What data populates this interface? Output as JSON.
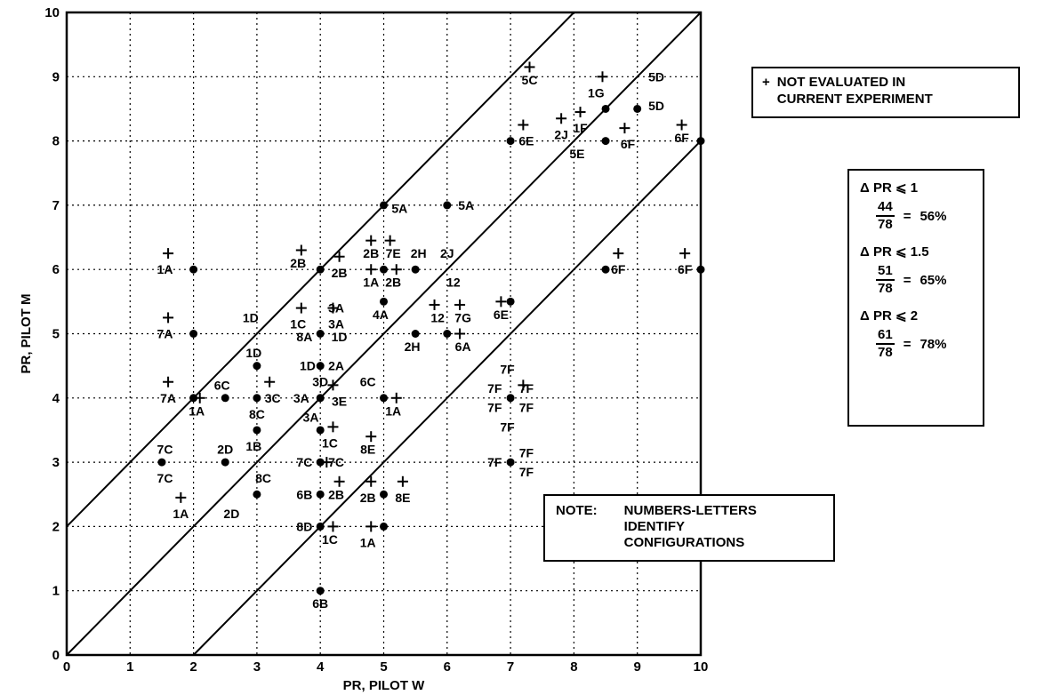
{
  "chart_data": {
    "type": "scatter",
    "title": "",
    "xlabel": "PR, PILOT W",
    "ylabel": "PR, PILOT M",
    "xlim": [
      0,
      10
    ],
    "ylim": [
      0,
      10
    ],
    "x_ticks": [
      "0",
      "1",
      "2",
      "3",
      "4",
      "5",
      "6",
      "7",
      "8",
      "9",
      "10"
    ],
    "y_ticks": [
      "0",
      "1",
      "2",
      "3",
      "4",
      "5",
      "6",
      "7",
      "8",
      "9",
      "10"
    ],
    "grid": true,
    "reference_lines": [
      {
        "x": [
          0,
          8
        ],
        "y": [
          2,
          10
        ]
      },
      {
        "x": [
          0,
          10
        ],
        "y": [
          0,
          10
        ]
      },
      {
        "x": [
          2,
          10
        ],
        "y": [
          0,
          8
        ]
      }
    ],
    "evaluated_points": [
      {
        "x": 2.0,
        "y": 6.0
      },
      {
        "x": 1.5,
        "y": 3.0
      },
      {
        "x": 2.0,
        "y": 5.0
      },
      {
        "x": 2.0,
        "y": 4.0
      },
      {
        "x": 2.5,
        "y": 4.0
      },
      {
        "x": 3.0,
        "y": 4.5
      },
      {
        "x": 3.0,
        "y": 4.0
      },
      {
        "x": 3.0,
        "y": 3.5
      },
      {
        "x": 3.0,
        "y": 2.5
      },
      {
        "x": 2.5,
        "y": 3.0
      },
      {
        "x": 4.0,
        "y": 6.0
      },
      {
        "x": 4.0,
        "y": 5.0
      },
      {
        "x": 4.0,
        "y": 4.5
      },
      {
        "x": 4.0,
        "y": 4.0
      },
      {
        "x": 4.0,
        "y": 3.5
      },
      {
        "x": 4.0,
        "y": 3.0
      },
      {
        "x": 4.0,
        "y": 2.5
      },
      {
        "x": 4.0,
        "y": 2.0
      },
      {
        "x": 4.0,
        "y": 1.0
      },
      {
        "x": 5.0,
        "y": 7.0
      },
      {
        "x": 6.0,
        "y": 7.0
      },
      {
        "x": 5.0,
        "y": 6.0
      },
      {
        "x": 5.5,
        "y": 6.0
      },
      {
        "x": 5.0,
        "y": 5.5
      },
      {
        "x": 5.5,
        "y": 5.0
      },
      {
        "x": 6.0,
        "y": 5.0
      },
      {
        "x": 5.0,
        "y": 4.0
      },
      {
        "x": 5.0,
        "y": 2.5
      },
      {
        "x": 5.0,
        "y": 2.0
      },
      {
        "x": 7.0,
        "y": 5.5
      },
      {
        "x": 7.0,
        "y": 8.0
      },
      {
        "x": 8.5,
        "y": 8.0
      },
      {
        "x": 8.5,
        "y": 8.5
      },
      {
        "x": 9.0,
        "y": 8.5
      },
      {
        "x": 8.5,
        "y": 6.0
      },
      {
        "x": 10.0,
        "y": 6.0
      },
      {
        "x": 10.0,
        "y": 8.0
      },
      {
        "x": 7.0,
        "y": 4.0
      },
      {
        "x": 7.0,
        "y": 3.0
      }
    ],
    "not_evaluated_points": [
      {
        "x": 1.6,
        "y": 6.25
      },
      {
        "x": 1.6,
        "y": 5.25
      },
      {
        "x": 1.6,
        "y": 4.25
      },
      {
        "x": 2.1,
        "y": 4.0
      },
      {
        "x": 1.8,
        "y": 2.45
      },
      {
        "x": 3.2,
        "y": 4.25
      },
      {
        "x": 3.7,
        "y": 6.3
      },
      {
        "x": 4.3,
        "y": 6.2
      },
      {
        "x": 3.7,
        "y": 5.4
      },
      {
        "x": 4.2,
        "y": 5.4
      },
      {
        "x": 4.2,
        "y": 4.2
      },
      {
        "x": 4.2,
        "y": 3.55
      },
      {
        "x": 4.1,
        "y": 3.0
      },
      {
        "x": 4.3,
        "y": 2.7
      },
      {
        "x": 4.2,
        "y": 2.0
      },
      {
        "x": 4.8,
        "y": 6.45
      },
      {
        "x": 5.1,
        "y": 6.45
      },
      {
        "x": 4.8,
        "y": 6.0
      },
      {
        "x": 5.2,
        "y": 6.0
      },
      {
        "x": 5.8,
        "y": 5.45
      },
      {
        "x": 6.2,
        "y": 5.45
      },
      {
        "x": 6.2,
        "y": 5.0
      },
      {
        "x": 6.85,
        "y": 5.5
      },
      {
        "x": 4.8,
        "y": 3.4
      },
      {
        "x": 4.8,
        "y": 2.7
      },
      {
        "x": 5.3,
        "y": 2.7
      },
      {
        "x": 4.8,
        "y": 2.0
      },
      {
        "x": 5.2,
        "y": 4.0
      },
      {
        "x": 7.3,
        "y": 9.15
      },
      {
        "x": 7.2,
        "y": 8.25
      },
      {
        "x": 7.8,
        "y": 8.35
      },
      {
        "x": 8.1,
        "y": 8.45
      },
      {
        "x": 8.45,
        "y": 9.0
      },
      {
        "x": 8.8,
        "y": 8.2
      },
      {
        "x": 9.7,
        "y": 8.25
      },
      {
        "x": 8.7,
        "y": 6.25
      },
      {
        "x": 9.75,
        "y": 6.25
      },
      {
        "x": 7.2,
        "y": 4.2
      }
    ],
    "point_labels": [
      {
        "text": "1A",
        "x": 1.55,
        "y": 6.0
      },
      {
        "text": "7A",
        "x": 1.55,
        "y": 5.0
      },
      {
        "text": "7A",
        "x": 1.6,
        "y": 4.0
      },
      {
        "text": "1A",
        "x": 2.05,
        "y": 3.8
      },
      {
        "text": "6C",
        "x": 2.45,
        "y": 4.2
      },
      {
        "text": "7C",
        "x": 1.55,
        "y": 3.2
      },
      {
        "text": "7C",
        "x": 1.55,
        "y": 2.75
      },
      {
        "text": "1A",
        "x": 1.8,
        "y": 2.2
      },
      {
        "text": "2D",
        "x": 2.5,
        "y": 3.2
      },
      {
        "text": "2D",
        "x": 2.6,
        "y": 2.2
      },
      {
        "text": "1D",
        "x": 2.9,
        "y": 5.25
      },
      {
        "text": "1D",
        "x": 2.95,
        "y": 4.7
      },
      {
        "text": "3C",
        "x": 3.25,
        "y": 4.0
      },
      {
        "text": "8C",
        "x": 3.0,
        "y": 3.75
      },
      {
        "text": "1B",
        "x": 2.95,
        "y": 3.25
      },
      {
        "text": "8C",
        "x": 3.1,
        "y": 2.75
      },
      {
        "text": "2B",
        "x": 3.65,
        "y": 6.1
      },
      {
        "text": "2B",
        "x": 4.3,
        "y": 5.95
      },
      {
        "text": "1C",
        "x": 3.65,
        "y": 5.15
      },
      {
        "text": "3A",
        "x": 4.25,
        "y": 5.4
      },
      {
        "text": "3A",
        "x": 4.25,
        "y": 5.15
      },
      {
        "text": "8A",
        "x": 3.75,
        "y": 4.95
      },
      {
        "text": "1D",
        "x": 4.3,
        "y": 4.95
      },
      {
        "text": "1D",
        "x": 3.8,
        "y": 4.5
      },
      {
        "text": "2A",
        "x": 4.25,
        "y": 4.5
      },
      {
        "text": "3D",
        "x": 4.0,
        "y": 4.25
      },
      {
        "text": "3A",
        "x": 3.7,
        "y": 4.0
      },
      {
        "text": "3E",
        "x": 4.3,
        "y": 3.95
      },
      {
        "text": "3A",
        "x": 3.85,
        "y": 3.7
      },
      {
        "text": "1C",
        "x": 4.15,
        "y": 3.3
      },
      {
        "text": "7C",
        "x": 3.75,
        "y": 3.0
      },
      {
        "text": "7C",
        "x": 4.25,
        "y": 3.0
      },
      {
        "text": "6B",
        "x": 3.75,
        "y": 2.5
      },
      {
        "text": "2B",
        "x": 4.25,
        "y": 2.5
      },
      {
        "text": "8D",
        "x": 3.75,
        "y": 2.0
      },
      {
        "text": "1C",
        "x": 4.15,
        "y": 1.8
      },
      {
        "text": "6B",
        "x": 4.0,
        "y": 0.8
      },
      {
        "text": "5A",
        "x": 5.25,
        "y": 6.95
      },
      {
        "text": "5A",
        "x": 6.3,
        "y": 7.0
      },
      {
        "text": "2B",
        "x": 4.8,
        "y": 6.25
      },
      {
        "text": "7E",
        "x": 5.15,
        "y": 6.25
      },
      {
        "text": "2H",
        "x": 5.55,
        "y": 6.25
      },
      {
        "text": "2J",
        "x": 6.0,
        "y": 6.25
      },
      {
        "text": "1A",
        "x": 4.8,
        "y": 5.8
      },
      {
        "text": "2B",
        "x": 5.15,
        "y": 5.8
      },
      {
        "text": "12",
        "x": 6.1,
        "y": 5.8
      },
      {
        "text": "4A",
        "x": 4.95,
        "y": 5.3
      },
      {
        "text": "12",
        "x": 5.85,
        "y": 5.25
      },
      {
        "text": "7G",
        "x": 6.25,
        "y": 5.25
      },
      {
        "text": "2H",
        "x": 5.45,
        "y": 4.8
      },
      {
        "text": "6A",
        "x": 6.25,
        "y": 4.8
      },
      {
        "text": "6E",
        "x": 6.85,
        "y": 5.3
      },
      {
        "text": "6C",
        "x": 4.75,
        "y": 4.25
      },
      {
        "text": "1A",
        "x": 5.15,
        "y": 3.8
      },
      {
        "text": "8E",
        "x": 4.75,
        "y": 3.2
      },
      {
        "text": "2B",
        "x": 4.75,
        "y": 2.45
      },
      {
        "text": "8E",
        "x": 5.3,
        "y": 2.45
      },
      {
        "text": "1A",
        "x": 4.75,
        "y": 1.75
      },
      {
        "text": "5C",
        "x": 7.3,
        "y": 8.95
      },
      {
        "text": "1G",
        "x": 8.35,
        "y": 8.75
      },
      {
        "text": "5D",
        "x": 9.3,
        "y": 9.0
      },
      {
        "text": "5D",
        "x": 9.3,
        "y": 8.55
      },
      {
        "text": "1F",
        "x": 8.1,
        "y": 8.2
      },
      {
        "text": "2J",
        "x": 7.8,
        "y": 8.1
      },
      {
        "text": "6E",
        "x": 7.25,
        "y": 8.0
      },
      {
        "text": "5E",
        "x": 8.05,
        "y": 7.8
      },
      {
        "text": "6F",
        "x": 8.85,
        "y": 7.95
      },
      {
        "text": "6F",
        "x": 9.7,
        "y": 8.05
      },
      {
        "text": "6F",
        "x": 8.7,
        "y": 6.0
      },
      {
        "text": "6F",
        "x": 9.75,
        "y": 6.0
      },
      {
        "text": "7F",
        "x": 6.95,
        "y": 4.45
      },
      {
        "text": "7F",
        "x": 6.75,
        "y": 4.15
      },
      {
        "text": "7F",
        "x": 7.25,
        "y": 4.15
      },
      {
        "text": "7F",
        "x": 6.75,
        "y": 3.85
      },
      {
        "text": "7F",
        "x": 7.25,
        "y": 3.85
      },
      {
        "text": "7F",
        "x": 6.95,
        "y": 3.55
      },
      {
        "text": "7F",
        "x": 7.25,
        "y": 3.15
      },
      {
        "text": "7F",
        "x": 6.75,
        "y": 3.0
      },
      {
        "text": "7F",
        "x": 7.25,
        "y": 2.85
      }
    ]
  },
  "legend": {
    "symbol": "+",
    "line1": "NOT EVALUATED IN",
    "line2": "CURRENT EXPERIMENT"
  },
  "stats": [
    {
      "cond": "Δ PR ⩽ 1",
      "num": "44",
      "den": "78",
      "pct": "56%"
    },
    {
      "cond": "Δ PR ⩽ 1.5",
      "num": "51",
      "den": "78",
      "pct": "65%"
    },
    {
      "cond": "Δ PR ⩽ 2",
      "num": "61",
      "den": "78",
      "pct": "78%"
    }
  ],
  "note": {
    "label": "NOTE:",
    "lines": [
      "NUMBERS-LETTERS",
      "IDENTIFY",
      "CONFIGURATIONS"
    ]
  }
}
